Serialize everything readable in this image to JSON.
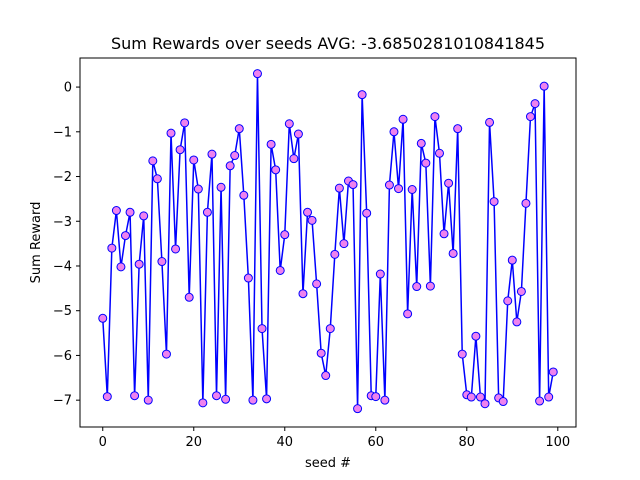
{
  "chart_data": {
    "type": "line",
    "title": "Sum Rewards over seeds AVG:  -3.6850281010841845",
    "xlabel": "seed #",
    "ylabel": "Sum Reward",
    "xlim": [
      -5,
      104
    ],
    "ylim": [
      -7.6,
      0.65
    ],
    "xticks": [
      0,
      20,
      40,
      60,
      80,
      100
    ],
    "yticks": [
      0,
      -1,
      -2,
      -3,
      -4,
      -5,
      -6,
      -7
    ],
    "grid": false,
    "line_color": "#0000ff",
    "marker_face_color": "#ee82ee",
    "marker_edge_color": "#0000ff",
    "series": [
      {
        "x": [
          0,
          1,
          2,
          3,
          4,
          5,
          6,
          7,
          8,
          9,
          10,
          11,
          12,
          13,
          14,
          15,
          16,
          17,
          18,
          19,
          20,
          21,
          22,
          23,
          24,
          25,
          26,
          27,
          28,
          29,
          30,
          31,
          32,
          33,
          34,
          35,
          36,
          37,
          38,
          39,
          40,
          41,
          42,
          43,
          44,
          45,
          46,
          47,
          48,
          49,
          50,
          51,
          52,
          53,
          54,
          55,
          56,
          57,
          58,
          59,
          60,
          61,
          62,
          63,
          64,
          65,
          66,
          67,
          68,
          69,
          70,
          71,
          72,
          73,
          74,
          75,
          76,
          77,
          78,
          79,
          80,
          81,
          82,
          83,
          84,
          85,
          86,
          87,
          88,
          89,
          90,
          91,
          92,
          93,
          94,
          95,
          96,
          97,
          98,
          99
        ],
        "values": [
          -5.17,
          -6.92,
          -3.6,
          -2.76,
          -4.02,
          -3.32,
          -2.8,
          -6.9,
          -3.96,
          -2.88,
          -7.0,
          -1.65,
          -2.05,
          -3.9,
          -5.97,
          -1.03,
          -3.62,
          -1.4,
          -0.8,
          -4.7,
          -1.63,
          -2.28,
          -7.06,
          -2.8,
          -1.5,
          -6.9,
          -2.24,
          -6.98,
          -1.76,
          -1.53,
          -0.93,
          -2.42,
          -4.27,
          -7.0,
          0.3,
          -5.4,
          -6.97,
          -1.28,
          -1.85,
          -4.1,
          -3.3,
          -0.82,
          -1.6,
          -1.05,
          -4.62,
          -2.8,
          -2.98,
          -4.4,
          -5.95,
          -6.45,
          -5.4,
          -3.74,
          -2.26,
          -3.5,
          -2.1,
          -2.18,
          -7.19,
          -0.17,
          -2.82,
          -6.9,
          -6.92,
          -4.18,
          -7.0,
          -2.19,
          -1.0,
          -2.27,
          -0.72,
          -5.07,
          -2.29,
          -4.46,
          -1.26,
          -1.7,
          -4.45,
          -0.66,
          -1.48,
          -3.28,
          -2.15,
          -3.72,
          -0.93,
          -5.97,
          -6.88,
          -6.93,
          -5.57,
          -6.93,
          -7.08,
          -0.79,
          -2.56,
          -6.95,
          -7.03,
          -4.78,
          -3.87,
          -5.25,
          -4.57,
          -2.6,
          -0.66,
          -0.37,
          -7.02,
          0.02,
          -6.93,
          -6.37
        ]
      }
    ]
  }
}
